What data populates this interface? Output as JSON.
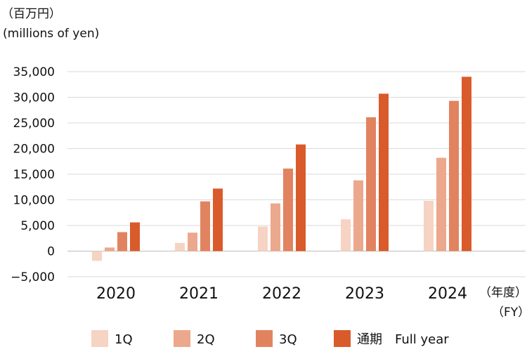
{
  "chart_data": {
    "type": "bar",
    "title": "",
    "ylabel_lines": [
      "（百万円）",
      "(millions of yen)"
    ],
    "xlabel_lines": [
      "（年度）",
      "（FY）"
    ],
    "categories": [
      "2020",
      "2021",
      "2022",
      "2023",
      "2024"
    ],
    "series": [
      {
        "name": "1Q",
        "color": "#f6d3c3",
        "values": [
          -1900,
          1600,
          4800,
          6200,
          9800
        ]
      },
      {
        "name": "2Q",
        "color": "#eca88c",
        "values": [
          700,
          3600,
          9300,
          13800,
          18200
        ]
      },
      {
        "name": "3Q",
        "color": "#e28360",
        "values": [
          3700,
          9700,
          16100,
          26100,
          29300
        ]
      },
      {
        "name": "通期　Full year",
        "color": "#d95b2b",
        "values": [
          5600,
          12200,
          20800,
          30700,
          34000
        ]
      }
    ],
    "ylim": [
      -5000,
      35000
    ],
    "yticks": [
      35000,
      30000,
      25000,
      20000,
      15000,
      10000,
      5000,
      0,
      -5000
    ],
    "ytick_labels": [
      "35,000",
      "30,000",
      "25,000",
      "20,000",
      "15,000",
      "10,000",
      "5,000",
      "0",
      "−5,000"
    ],
    "grid": true,
    "legend_position": "bottom"
  }
}
